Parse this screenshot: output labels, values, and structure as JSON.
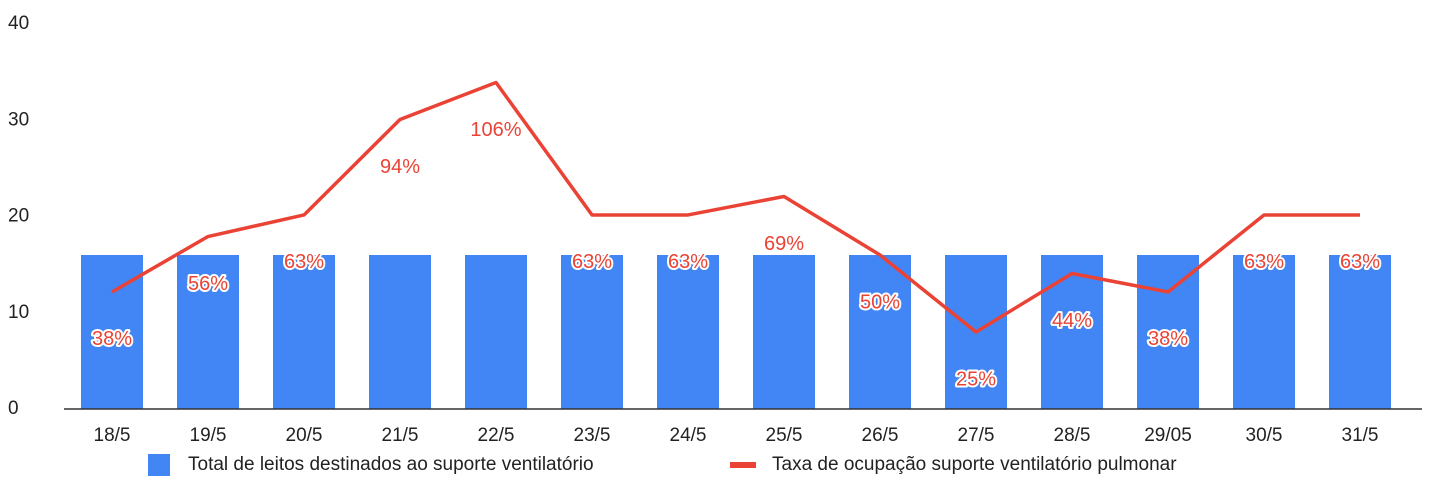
{
  "chart_data": {
    "type": "bar",
    "categories": [
      "18/5",
      "19/5",
      "20/5",
      "21/5",
      "22/5",
      "23/5",
      "24/5",
      "25/5",
      "26/5",
      "27/5",
      "28/5",
      "29/05",
      "30/5",
      "31/5"
    ],
    "series": [
      {
        "name": "Total de leitos destinados ao suporte ventilatório",
        "type": "bar",
        "color": "#4285f4",
        "values": [
          16,
          16,
          16,
          16,
          16,
          16,
          16,
          16,
          16,
          16,
          16,
          16,
          16,
          16
        ]
      },
      {
        "name": "Taxa de ocupação suporte ventilatório pulmonar",
        "type": "line",
        "color": "#ea4335",
        "axis": "y2",
        "values": [
          38,
          56,
          63,
          94,
          106,
          63,
          63,
          69,
          50,
          25,
          44,
          38,
          63,
          63
        ],
        "value_labels": [
          "38%",
          "56%",
          "63%",
          "94%",
          "106%",
          "63%",
          "63%",
          "69%",
          "50%",
          "25%",
          "44%",
          "38%",
          "63%",
          "63%"
        ]
      }
    ],
    "ylim": [
      0,
      40
    ],
    "yticks": [
      0,
      10,
      20,
      30,
      40
    ],
    "y2lim": [
      0,
      125
    ],
    "grid": false,
    "legend": "bottom"
  }
}
